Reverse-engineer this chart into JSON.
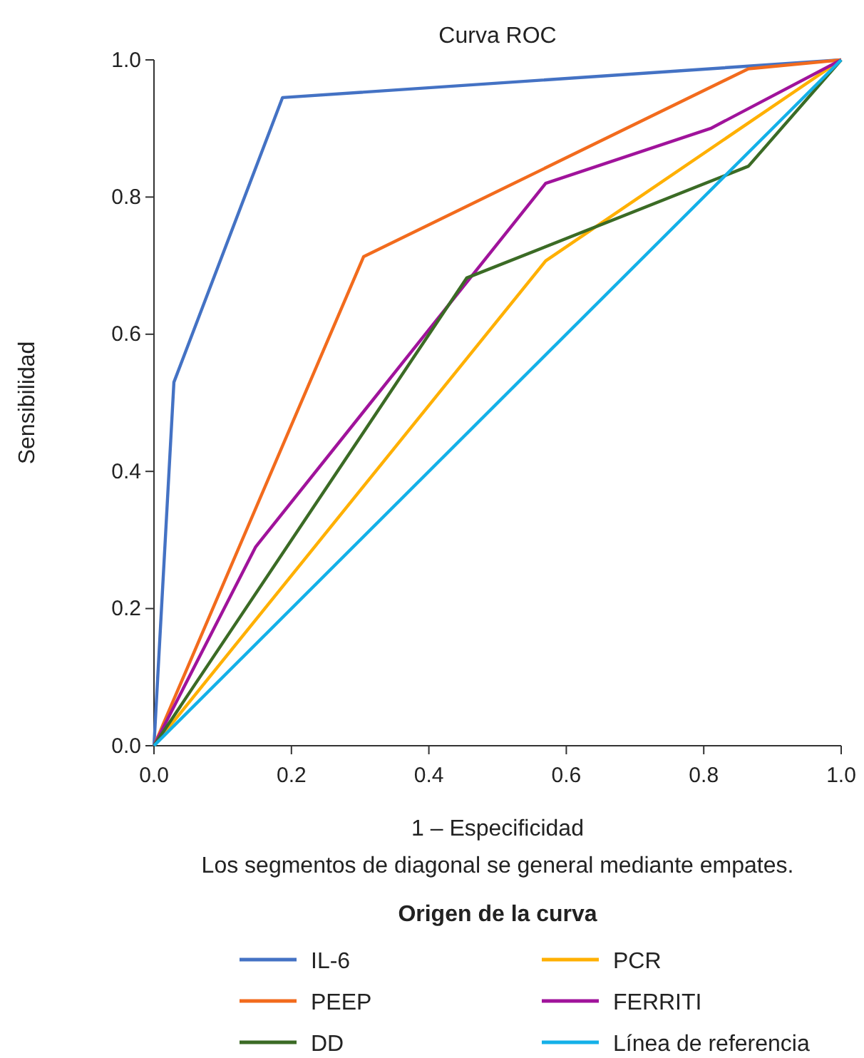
{
  "chart_data": {
    "type": "line",
    "title": "Curva ROC",
    "xlabel": "1 – Especificidad",
    "ylabel": "Sensibilidad",
    "legend_title": "Origen de la curva",
    "annotations": [
      "Los segmentos de diagonal se general mediante empates."
    ],
    "xlim": [
      0,
      1
    ],
    "ylim": [
      0,
      1
    ],
    "xticks": [
      {
        "value": 0,
        "label": "0.0"
      },
      {
        "value": 0.2,
        "label": "0.2"
      },
      {
        "value": 0.4,
        "label": "0.4"
      },
      {
        "value": 0.6,
        "label": "0.6"
      },
      {
        "value": 0.8,
        "label": "0.8"
      },
      {
        "value": 1,
        "label": "1.0"
      }
    ],
    "yticks": [
      {
        "value": 0,
        "label": "0.0"
      },
      {
        "value": 0.2,
        "label": "0.2"
      },
      {
        "value": 0.4,
        "label": "0.4"
      },
      {
        "value": 0.6,
        "label": "0.6"
      },
      {
        "value": 0.8,
        "label": "0.8"
      },
      {
        "value": 1,
        "label": "1.0"
      }
    ],
    "legend": "bottom",
    "grid": false,
    "marker": "none",
    "series": [
      {
        "name": "IL-6",
        "color": "#4472c4",
        "x": [
          0,
          0.029,
          0.187,
          1
        ],
        "values": [
          0,
          0.53,
          0.945,
          1
        ]
      },
      {
        "name": "PCR",
        "color": "#ffb000",
        "x": [
          0,
          0.57,
          1
        ],
        "values": [
          0,
          0.707,
          1
        ]
      },
      {
        "name": "PEEP",
        "color": "#f26b1d",
        "x": [
          0,
          0.305,
          0.865,
          1
        ],
        "values": [
          0,
          0.713,
          0.987,
          1
        ]
      },
      {
        "name": "FERRITI",
        "color": "#a0139b",
        "x": [
          0,
          0.148,
          0.57,
          0.81,
          1
        ],
        "values": [
          0,
          0.29,
          0.82,
          0.9,
          1
        ]
      },
      {
        "name": "DD",
        "color": "#3b6b25",
        "x": [
          0,
          0.455,
          0.865,
          1
        ],
        "values": [
          0,
          0.682,
          0.845,
          1
        ]
      },
      {
        "name": "Línea de referencia",
        "color": "#14b0e8",
        "x": [
          0,
          1
        ],
        "values": [
          0,
          1
        ]
      }
    ]
  }
}
